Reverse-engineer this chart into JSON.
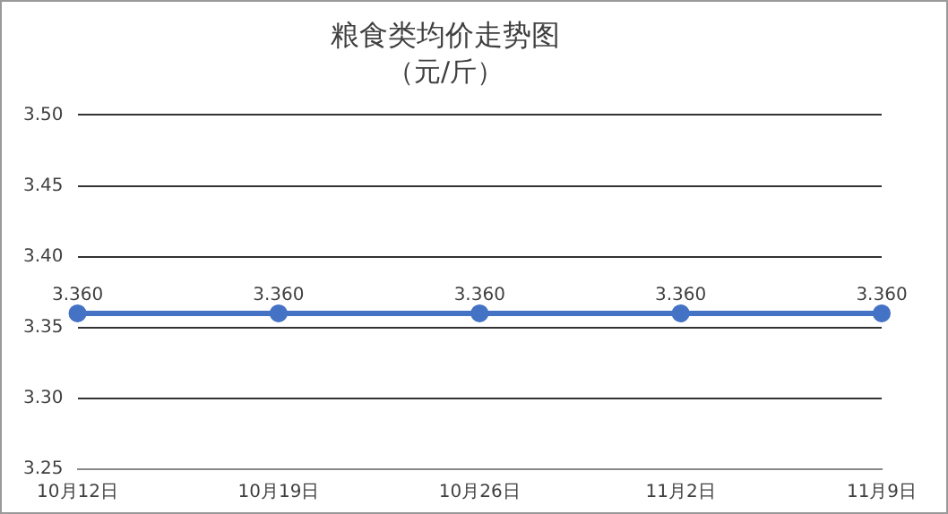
{
  "chart_data": {
    "type": "line",
    "title": "粮食类均价走势图",
    "subtitle": "（元/斤）",
    "categories": [
      "10月12日",
      "10月19日",
      "10月26日",
      "11月2日",
      "11月9日"
    ],
    "series": [
      {
        "color": "#4472c4",
        "values": [
          3.36,
          3.36,
          3.36,
          3.36,
          3.36
        ],
        "value_labels": [
          "3.360",
          "3.360",
          "3.360",
          "3.360",
          "3.360"
        ]
      }
    ],
    "ylim": [
      3.25,
      3.5
    ],
    "yticks": [
      3.25,
      {
        "value": 3.3,
        "label": "3.30"
      },
      3.35,
      {
        "value": 3.4,
        "label": "3.40"
      },
      3.45,
      {
        "value": 3.5,
        "label": "3.50"
      }
    ],
    "grid": "y",
    "legend": false,
    "marker": "circle",
    "line_style": "solid"
  }
}
